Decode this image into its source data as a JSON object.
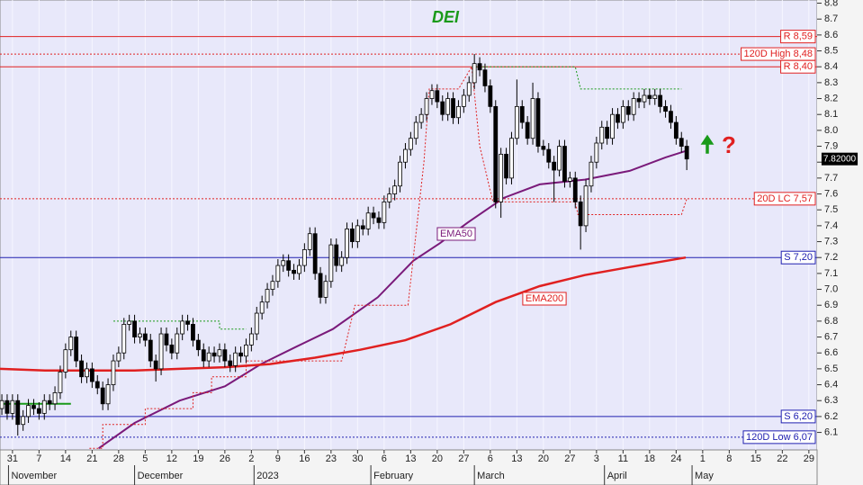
{
  "chart_data": {
    "type": "candlestick",
    "title": "DEI",
    "annotations": [
      "?"
    ],
    "xlim": [
      -0.47,
      30.31
    ],
    "ylim": [
      5.99,
      8.82
    ],
    "grid": true,
    "xticks": [
      {
        "value": 0,
        "label": "31"
      },
      {
        "value": 1,
        "label": "7"
      },
      {
        "value": 2,
        "label": "14"
      },
      {
        "value": 3,
        "label": "21"
      },
      {
        "value": 4,
        "label": "28"
      },
      {
        "value": 5,
        "label": "5"
      },
      {
        "value": 6,
        "label": "12"
      },
      {
        "value": 7,
        "label": "19"
      },
      {
        "value": 8,
        "label": "26"
      },
      {
        "value": 9,
        "label": "2"
      },
      {
        "value": 10,
        "label": "9"
      },
      {
        "value": 11,
        "label": "16"
      },
      {
        "value": 12,
        "label": "23"
      },
      {
        "value": 13,
        "label": "30"
      },
      {
        "value": 14,
        "label": "6"
      },
      {
        "value": 15,
        "label": "13"
      },
      {
        "value": 16,
        "label": "20"
      },
      {
        "value": 17,
        "label": "27"
      },
      {
        "value": 18,
        "label": "6"
      },
      {
        "value": 19,
        "label": "13"
      },
      {
        "value": 20,
        "label": "20"
      },
      {
        "value": 21,
        "label": "27"
      },
      {
        "value": 22,
        "label": "3"
      },
      {
        "value": 23,
        "label": "11"
      },
      {
        "value": 24,
        "label": "18"
      },
      {
        "value": 25,
        "label": "24"
      },
      {
        "value": 26,
        "label": "1"
      },
      {
        "value": 27,
        "label": "8"
      },
      {
        "value": 28,
        "label": "15"
      },
      {
        "value": 29,
        "label": "22"
      },
      {
        "value": 30,
        "label": "29"
      }
    ],
    "month_labels": [
      {
        "value": -0.15,
        "label": "November"
      },
      {
        "value": 4.6,
        "label": "December"
      },
      {
        "value": 9.1,
        "label": "2023"
      },
      {
        "value": 13.5,
        "label": "February"
      },
      {
        "value": 17.4,
        "label": "March"
      },
      {
        "value": 22.3,
        "label": "April"
      },
      {
        "value": 25.6,
        "label": "May"
      }
    ],
    "yticks": [
      6.1,
      6.2,
      6.3,
      6.4,
      6.5,
      6.6,
      6.7,
      6.8,
      6.9,
      {
        "value": 7,
        "label": "7.0"
      },
      7.1,
      7.2,
      7.3,
      7.4,
      7.5,
      7.6,
      7.7,
      7.8,
      7.9,
      {
        "value": 8,
        "label": "8.0"
      },
      8.1,
      8.2,
      8.3,
      8.4,
      8.5,
      8.6,
      8.7,
      8.8
    ],
    "up_color": "#ffffff",
    "down_color": "#000000",
    "x": [
      -0.4,
      -0.2,
      0,
      0.2,
      0.4,
      0.6,
      0.8,
      1,
      1.2,
      1.4,
      1.6,
      1.8,
      2,
      2.2,
      2.4,
      2.6,
      2.8,
      3,
      3.2,
      3.4,
      3.6,
      3.8,
      4,
      4.2,
      4.4,
      4.6,
      4.8,
      5,
      5.2,
      5.4,
      5.6,
      5.8,
      6,
      6.2,
      6.4,
      6.6,
      6.8,
      7,
      7.2,
      7.4,
      7.6,
      7.8,
      8,
      8.2,
      8.4,
      8.6,
      8.8,
      9,
      9.2,
      9.4,
      9.6,
      9.8,
      10,
      10.2,
      10.4,
      10.6,
      10.8,
      11,
      11.2,
      11.4,
      11.6,
      11.8,
      12,
      12.2,
      12.4,
      12.6,
      12.8,
      13,
      13.2,
      13.4,
      13.6,
      13.8,
      14,
      14.2,
      14.4,
      14.6,
      14.8,
      15,
      15.2,
      15.4,
      15.6,
      15.8,
      16,
      16.2,
      16.4,
      16.6,
      16.8,
      17,
      17.2,
      17.4,
      17.6,
      17.8,
      18,
      18.2,
      18.4,
      18.6,
      18.8,
      19,
      19.2,
      19.4,
      19.6,
      19.8,
      20,
      20.2,
      20.4,
      20.6,
      20.8,
      21,
      21.2,
      21.4,
      21.6,
      21.8,
      22,
      22.2,
      22.4,
      22.6,
      22.8,
      23,
      23.2,
      23.4,
      23.6,
      23.8,
      24,
      24.2,
      24.4,
      24.6,
      24.8,
      25,
      25.2,
      25.4
    ],
    "ohlc": [
      [
        6.25,
        6.34,
        6.21,
        6.3
      ],
      [
        6.3,
        6.34,
        6.18,
        6.22
      ],
      [
        6.22,
        6.34,
        6.18,
        6.3
      ],
      [
        6.3,
        6.34,
        6.08,
        6.15
      ],
      [
        6.15,
        6.24,
        6.11,
        6.2
      ],
      [
        6.2,
        6.31,
        6.16,
        6.27
      ],
      [
        6.27,
        6.31,
        6.21,
        6.25
      ],
      [
        6.25,
        6.29,
        6.18,
        6.22
      ],
      [
        6.22,
        6.34,
        6.18,
        6.3
      ],
      [
        6.3,
        6.34,
        6.24,
        6.28
      ],
      [
        6.28,
        6.39,
        6.24,
        6.35
      ],
      [
        6.35,
        6.52,
        6.31,
        6.48
      ],
      [
        6.48,
        6.66,
        6.44,
        6.62
      ],
      [
        6.62,
        6.74,
        6.58,
        6.7
      ],
      [
        6.7,
        6.74,
        6.51,
        6.55
      ],
      [
        6.55,
        6.59,
        6.41,
        6.45
      ],
      [
        6.45,
        6.54,
        6.41,
        6.5
      ],
      [
        6.5,
        6.54,
        6.38,
        6.42
      ],
      [
        6.42,
        6.46,
        6.34,
        6.38
      ],
      [
        6.38,
        6.42,
        6.24,
        6.28
      ],
      [
        6.28,
        6.44,
        6.24,
        6.4
      ],
      [
        6.4,
        6.59,
        6.36,
        6.55
      ],
      [
        6.55,
        6.64,
        6.51,
        6.6
      ],
      [
        6.6,
        6.82,
        6.56,
        6.78
      ],
      [
        6.78,
        6.84,
        6.74,
        6.8
      ],
      [
        6.8,
        6.84,
        6.66,
        6.7
      ],
      [
        6.7,
        6.76,
        6.66,
        6.72
      ],
      [
        6.72,
        6.76,
        6.64,
        6.68
      ],
      [
        6.68,
        6.72,
        6.51,
        6.55
      ],
      [
        6.55,
        6.59,
        6.42,
        6.5
      ],
      [
        6.5,
        6.76,
        6.46,
        6.72
      ],
      [
        6.72,
        6.76,
        6.61,
        6.65
      ],
      [
        6.65,
        6.69,
        6.56,
        6.6
      ],
      [
        6.6,
        6.76,
        6.56,
        6.72
      ],
      [
        6.72,
        6.84,
        6.68,
        6.8
      ],
      [
        6.8,
        6.84,
        6.74,
        6.78
      ],
      [
        6.78,
        6.82,
        6.64,
        6.68
      ],
      [
        6.68,
        6.72,
        6.58,
        6.62
      ],
      [
        6.62,
        6.66,
        6.51,
        6.55
      ],
      [
        6.55,
        6.64,
        6.51,
        6.6
      ],
      [
        6.6,
        6.64,
        6.54,
        6.58
      ],
      [
        6.58,
        6.66,
        6.54,
        6.62
      ],
      [
        6.62,
        6.66,
        6.51,
        6.55
      ],
      [
        6.55,
        6.59,
        6.48,
        6.52
      ],
      [
        6.52,
        6.64,
        6.48,
        6.6
      ],
      [
        6.6,
        6.64,
        6.54,
        6.58
      ],
      [
        6.58,
        6.69,
        6.54,
        6.65
      ],
      [
        6.65,
        6.76,
        6.61,
        6.72
      ],
      [
        6.72,
        6.89,
        6.68,
        6.85
      ],
      [
        6.85,
        6.96,
        6.81,
        6.92
      ],
      [
        6.92,
        7.04,
        6.88,
        7.0
      ],
      [
        7.0,
        7.09,
        6.96,
        7.05
      ],
      [
        7.05,
        7.19,
        7.01,
        7.15
      ],
      [
        7.15,
        7.22,
        7.11,
        7.18
      ],
      [
        7.18,
        7.22,
        7.08,
        7.12
      ],
      [
        7.12,
        7.16,
        7.06,
        7.1
      ],
      [
        7.1,
        7.19,
        7.06,
        7.15
      ],
      [
        7.15,
        7.29,
        7.11,
        7.25
      ],
      [
        7.25,
        7.39,
        7.21,
        7.35
      ],
      [
        7.35,
        7.39,
        7.06,
        7.1
      ],
      [
        7.1,
        7.14,
        6.91,
        6.95
      ],
      [
        6.95,
        7.09,
        6.91,
        7.05
      ],
      [
        7.05,
        7.32,
        7.01,
        7.28
      ],
      [
        7.28,
        7.32,
        7.11,
        7.15
      ],
      [
        7.15,
        7.24,
        7.11,
        7.2
      ],
      [
        7.2,
        7.42,
        7.16,
        7.38
      ],
      [
        7.38,
        7.42,
        7.26,
        7.3
      ],
      [
        7.3,
        7.44,
        7.26,
        7.4
      ],
      [
        7.4,
        7.44,
        7.34,
        7.38
      ],
      [
        7.38,
        7.52,
        7.34,
        7.48
      ],
      [
        7.48,
        7.52,
        7.41,
        7.45
      ],
      [
        7.45,
        7.49,
        7.38,
        7.42
      ],
      [
        7.42,
        7.59,
        7.38,
        7.55
      ],
      [
        7.55,
        7.64,
        7.51,
        7.6
      ],
      [
        7.6,
        7.69,
        7.56,
        7.65
      ],
      [
        7.65,
        7.84,
        7.61,
        7.8
      ],
      [
        7.8,
        7.92,
        7.76,
        7.88
      ],
      [
        7.88,
        7.99,
        7.84,
        7.95
      ],
      [
        7.95,
        8.09,
        7.91,
        8.05
      ],
      [
        8.05,
        8.14,
        8.01,
        8.1
      ],
      [
        8.1,
        8.24,
        8.06,
        8.2
      ],
      [
        8.2,
        8.29,
        8.16,
        8.25
      ],
      [
        8.25,
        8.29,
        8.14,
        8.18
      ],
      [
        8.18,
        8.22,
        8.06,
        8.1
      ],
      [
        8.1,
        8.24,
        8.06,
        8.2
      ],
      [
        8.2,
        8.24,
        8.04,
        8.08
      ],
      [
        8.08,
        8.19,
        8.04,
        8.15
      ],
      [
        8.15,
        8.26,
        8.11,
        8.22
      ],
      [
        8.22,
        8.34,
        8.18,
        8.3
      ],
      [
        8.3,
        8.48,
        8.26,
        8.42
      ],
      [
        8.42,
        8.46,
        8.34,
        8.38
      ],
      [
        8.38,
        8.42,
        8.24,
        8.28
      ],
      [
        8.28,
        8.32,
        8.11,
        8.15
      ],
      [
        8.15,
        8.19,
        7.51,
        7.55
      ],
      [
        7.55,
        7.89,
        7.45,
        7.85
      ],
      [
        7.85,
        7.89,
        7.66,
        7.7
      ],
      [
        7.7,
        7.99,
        7.66,
        7.95
      ],
      [
        7.95,
        8.32,
        7.91,
        8.15
      ],
      [
        8.15,
        8.19,
        8.01,
        8.05
      ],
      [
        8.05,
        8.09,
        7.91,
        7.95
      ],
      [
        7.95,
        8.3,
        7.91,
        8.2
      ],
      [
        8.2,
        8.24,
        7.86,
        7.9
      ],
      [
        7.9,
        7.94,
        7.84,
        7.88
      ],
      [
        7.88,
        7.92,
        7.76,
        7.8
      ],
      [
        7.8,
        7.84,
        7.55,
        7.75
      ],
      [
        7.75,
        7.94,
        7.71,
        7.9
      ],
      [
        7.9,
        7.94,
        7.64,
        7.68
      ],
      [
        7.68,
        7.74,
        7.64,
        7.7
      ],
      [
        7.7,
        7.74,
        7.51,
        7.55
      ],
      [
        7.55,
        7.59,
        7.25,
        7.4
      ],
      [
        7.4,
        7.69,
        7.36,
        7.65
      ],
      [
        7.65,
        7.84,
        7.61,
        7.8
      ],
      [
        7.8,
        7.96,
        7.76,
        7.92
      ],
      [
        7.92,
        8.06,
        7.88,
        8.02
      ],
      [
        8.02,
        8.06,
        7.91,
        7.95
      ],
      [
        7.95,
        8.14,
        7.91,
        8.1
      ],
      [
        8.1,
        8.14,
        8.01,
        8.05
      ],
      [
        8.05,
        8.19,
        8.01,
        8.15
      ],
      [
        8.15,
        8.19,
        8.06,
        8.1
      ],
      [
        8.1,
        8.24,
        8.06,
        8.2
      ],
      [
        8.2,
        8.24,
        8.14,
        8.18
      ],
      [
        8.18,
        8.26,
        8.14,
        8.22
      ],
      [
        8.22,
        8.26,
        8.16,
        8.2
      ],
      [
        8.2,
        8.26,
        8.16,
        8.22
      ],
      [
        8.22,
        8.26,
        8.11,
        8.15
      ],
      [
        8.15,
        8.19,
        8.08,
        8.12
      ],
      [
        8.12,
        8.16,
        8.01,
        8.05
      ],
      [
        8.05,
        8.09,
        7.91,
        7.95
      ],
      [
        7.95,
        7.99,
        7.86,
        7.9
      ],
      [
        7.9,
        7.94,
        7.75,
        7.82
      ]
    ],
    "series": [
      {
        "name": "EMA50",
        "color": "#7a1a7a",
        "width": 2,
        "x": [
          3.25,
          4.6,
          6.3,
          8.0,
          9.36,
          10.7,
          12.07,
          13.76,
          15.1,
          16.1,
          17.15,
          18.5,
          19.86,
          21.56,
          23.25,
          24.6,
          25.36
        ],
        "values": [
          6.0,
          6.16,
          6.3,
          6.39,
          6.53,
          6.64,
          6.75,
          6.95,
          7.18,
          7.29,
          7.42,
          7.575,
          7.66,
          7.69,
          7.745,
          7.83,
          7.87
        ]
      },
      {
        "name": "EMA200",
        "color": "#e02020",
        "width": 2.5,
        "x": [
          -0.47,
          1.22,
          2.9,
          4.6,
          6.3,
          8.0,
          9.7,
          11.4,
          13.1,
          14.8,
          16.5,
          18.2,
          19.86,
          21.56,
          23.25,
          25.36
        ],
        "values": [
          6.5,
          6.49,
          6.49,
          6.49,
          6.5,
          6.51,
          6.53,
          6.57,
          6.62,
          6.68,
          6.78,
          6.92,
          7.02,
          7.09,
          7.14,
          7.2
        ]
      },
      {
        "color": "#e02020",
        "width": 1,
        "dash": "2,2",
        "x": [
          2.9,
          3.4,
          3.4,
          5.0,
          5.0,
          6.8,
          6.8,
          7.5,
          7.5,
          8.8,
          8.8,
          12.4,
          12.9,
          14.9,
          15.1,
          15.3,
          15.5,
          15.7,
          16.8,
          17.3,
          17.6,
          18.1,
          21.2,
          21.3,
          25.2,
          25.4
        ],
        "values": [
          6.0,
          6.0,
          6.15,
          6.15,
          6.25,
          6.25,
          6.35,
          6.35,
          6.45,
          6.45,
          6.55,
          6.55,
          6.9,
          6.9,
          7.2,
          7.5,
          7.8,
          8.26,
          8.26,
          8.4,
          7.9,
          7.55,
          7.55,
          7.47,
          7.47,
          7.57
        ]
      },
      {
        "color": "#1a9a1a",
        "width": 1,
        "dash": "2,2",
        "x": [
          3.8,
          7.8,
          7.8,
          8.8,
          17.0,
          17.3,
          21.2,
          21.4,
          25.2
        ],
        "values": [
          6.8,
          6.8,
          6.75,
          6.75,
          null,
          8.4,
          8.4,
          8.26,
          8.26
        ]
      },
      {
        "color": "#1a9a1a",
        "width": 2,
        "x": [
          -0.45,
          2.2
        ],
        "values": [
          6.28,
          6.28
        ]
      }
    ],
    "levels": [
      {
        "label": "R 8,59",
        "value": 8.59,
        "color": "#e02020",
        "style": "solid"
      },
      {
        "label": "120D High 8,48",
        "value": 8.48,
        "color": "#e02020",
        "style": "dotted"
      },
      {
        "label": "R 8,40",
        "value": 8.4,
        "color": "#e02020",
        "style": "solid"
      },
      {
        "label": "20D LC 7,57",
        "value": 7.57,
        "color": "#e02020",
        "style": "dotted"
      },
      {
        "label": "S 7,20",
        "value": 7.2,
        "color": "#2020b0",
        "style": "solid"
      },
      {
        "label": "S 6,20",
        "value": 6.2,
        "color": "#2020b0",
        "style": "solid"
      },
      {
        "label": "120D Low 6,07",
        "value": 6.07,
        "color": "#2020b0",
        "style": "dotted"
      }
    ],
    "last_price": {
      "value": 7.82,
      "label": "7.82000"
    }
  }
}
